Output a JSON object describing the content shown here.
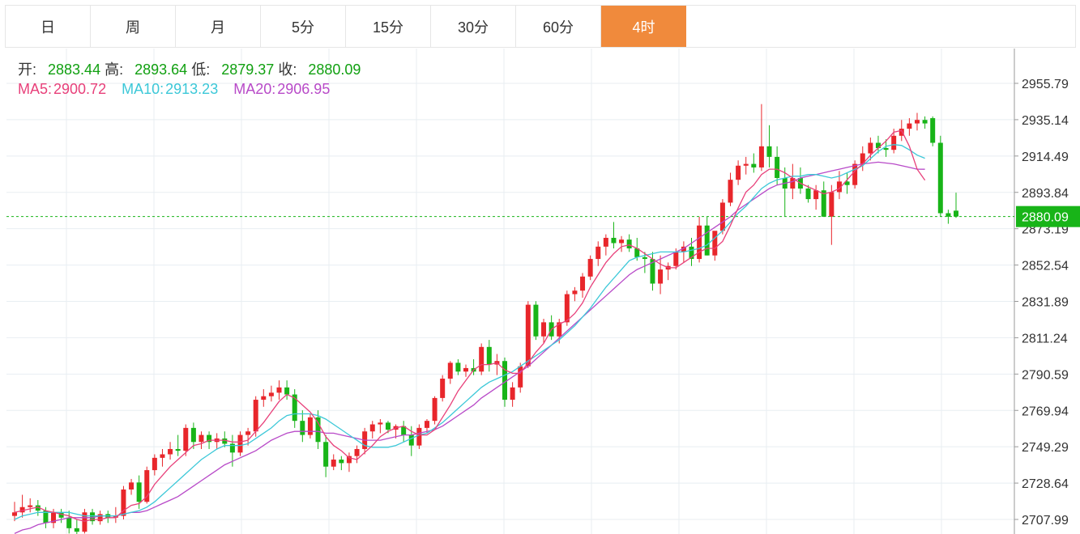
{
  "tabs": [
    "日",
    "周",
    "月",
    "5分",
    "15分",
    "30分",
    "60分",
    "4时"
  ],
  "active_tab_index": 7,
  "ohlc_info": {
    "open_label": "开:",
    "open_value": "2883.44",
    "high_label": "高:",
    "high_value": "2893.64",
    "low_label": "低:",
    "low_value": "2879.37",
    "close_label": "收:",
    "close_value": "2880.09"
  },
  "ma_info": {
    "ma5_label": "MA5:",
    "ma5_value": "2900.72",
    "ma10_label": "MA10:",
    "ma10_value": "2913.23",
    "ma20_label": "MA20:",
    "ma20_value": "2906.95"
  },
  "colors": {
    "up": "#e8262b",
    "down": "#18b418",
    "ma5": "#e8407a",
    "ma10": "#3cc8d8",
    "ma20": "#b84ac8",
    "accent": "#f08a3c"
  },
  "chart_data": {
    "type": "candlestick",
    "ylim": [
      2700.0,
      2970.0
    ],
    "y_ticks": [
      "2955.79",
      "2935.14",
      "2914.49",
      "2893.84",
      "2873.19",
      "2852.54",
      "2831.89",
      "2811.24",
      "2790.59",
      "2769.94",
      "2749.29",
      "2728.64",
      "2707.99"
    ],
    "last_price_label": "2880.09",
    "grid": true,
    "candles": [
      [
        2710,
        2718,
        2707,
        2712
      ],
      [
        2712,
        2722,
        2709,
        2715
      ],
      [
        2715,
        2720,
        2712,
        2716
      ],
      [
        2716,
        2719,
        2710,
        2713
      ],
      [
        2713,
        2715,
        2703,
        2706
      ],
      [
        2706,
        2714,
        2703,
        2712
      ],
      [
        2712,
        2714,
        2706,
        2709
      ],
      [
        2709,
        2713,
        2700,
        2703
      ],
      [
        2703,
        2708,
        2698,
        2701
      ],
      [
        2701,
        2714,
        2700,
        2712
      ],
      [
        2712,
        2714,
        2705,
        2707
      ],
      [
        2707,
        2713,
        2705,
        2711
      ],
      [
        2711,
        2713,
        2706,
        2709
      ],
      [
        2709,
        2715,
        2706,
        2710
      ],
      [
        2710,
        2727,
        2708,
        2725
      ],
      [
        2725,
        2731,
        2722,
        2729
      ],
      [
        2729,
        2733,
        2714,
        2718
      ],
      [
        2718,
        2738,
        2717,
        2736
      ],
      [
        2736,
        2745,
        2733,
        2743
      ],
      [
        2743,
        2748,
        2738,
        2745
      ],
      [
        2745,
        2752,
        2742,
        2748
      ],
      [
        2748,
        2756,
        2744,
        2747
      ],
      [
        2747,
        2762,
        2744,
        2760
      ],
      [
        2760,
        2763,
        2748,
        2752
      ],
      [
        2752,
        2758,
        2748,
        2756
      ],
      [
        2756,
        2758,
        2748,
        2752
      ],
      [
        2752,
        2757,
        2748,
        2754
      ],
      [
        2754,
        2758,
        2749,
        2751
      ],
      [
        2751,
        2756,
        2738,
        2746
      ],
      [
        2746,
        2758,
        2744,
        2756
      ],
      [
        2756,
        2760,
        2750,
        2758
      ],
      [
        2758,
        2778,
        2755,
        2776
      ],
      [
        2776,
        2782,
        2772,
        2778
      ],
      [
        2778,
        2784,
        2775,
        2780
      ],
      [
        2780,
        2787,
        2776,
        2783
      ],
      [
        2783,
        2787,
        2776,
        2779
      ],
      [
        2779,
        2782,
        2760,
        2764
      ],
      [
        2764,
        2770,
        2752,
        2756
      ],
      [
        2756,
        2768,
        2754,
        2766
      ],
      [
        2766,
        2770,
        2748,
        2752
      ],
      [
        2752,
        2756,
        2732,
        2738
      ],
      [
        2738,
        2745,
        2736,
        2742
      ],
      [
        2742,
        2744,
        2736,
        2740
      ],
      [
        2740,
        2746,
        2735,
        2744
      ],
      [
        2744,
        2750,
        2740,
        2748
      ],
      [
        2748,
        2760,
        2745,
        2758
      ],
      [
        2758,
        2764,
        2754,
        2762
      ],
      [
        2762,
        2765,
        2757,
        2763
      ],
      [
        2763,
        2764,
        2757,
        2759
      ],
      [
        2759,
        2762,
        2754,
        2761
      ],
      [
        2761,
        2764,
        2752,
        2756
      ],
      [
        2756,
        2761,
        2744,
        2750
      ],
      [
        2750,
        2762,
        2748,
        2760
      ],
      [
        2760,
        2765,
        2757,
        2764
      ],
      [
        2764,
        2778,
        2762,
        2777
      ],
      [
        2777,
        2790,
        2775,
        2788
      ],
      [
        2788,
        2798,
        2785,
        2797
      ],
      [
        2797,
        2799,
        2790,
        2792
      ],
      [
        2792,
        2796,
        2789,
        2794
      ],
      [
        2794,
        2799,
        2790,
        2792
      ],
      [
        2792,
        2808,
        2790,
        2806
      ],
      [
        2806,
        2810,
        2792,
        2796
      ],
      [
        2796,
        2802,
        2790,
        2798
      ],
      [
        2798,
        2800,
        2772,
        2776
      ],
      [
        2776,
        2786,
        2772,
        2783
      ],
      [
        2783,
        2797,
        2780,
        2795
      ],
      [
        2795,
        2832,
        2794,
        2830
      ],
      [
        2830,
        2832,
        2810,
        2812
      ],
      [
        2812,
        2822,
        2808,
        2820
      ],
      [
        2820,
        2824,
        2810,
        2812
      ],
      [
        2812,
        2822,
        2808,
        2820
      ],
      [
        2820,
        2838,
        2818,
        2836
      ],
      [
        2836,
        2840,
        2832,
        2838
      ],
      [
        2838,
        2848,
        2834,
        2846
      ],
      [
        2846,
        2858,
        2844,
        2856
      ],
      [
        2856,
        2866,
        2852,
        2863
      ],
      [
        2863,
        2870,
        2858,
        2868
      ],
      [
        2868,
        2877,
        2862,
        2865
      ],
      [
        2865,
        2869,
        2860,
        2867
      ],
      [
        2867,
        2870,
        2860,
        2862
      ],
      [
        2862,
        2868,
        2855,
        2857
      ],
      [
        2857,
        2860,
        2848,
        2856
      ],
      [
        2856,
        2860,
        2838,
        2842
      ],
      [
        2842,
        2858,
        2836,
        2850
      ],
      [
        2850,
        2854,
        2844,
        2852
      ],
      [
        2852,
        2862,
        2850,
        2860
      ],
      [
        2860,
        2866,
        2854,
        2863
      ],
      [
        2863,
        2868,
        2852,
        2856
      ],
      [
        2856,
        2880,
        2854,
        2875
      ],
      [
        2875,
        2880,
        2858,
        2858
      ],
      [
        2858,
        2870,
        2855,
        2872
      ],
      [
        2872,
        2890,
        2870,
        2888
      ],
      [
        2888,
        2905,
        2886,
        2901
      ],
      [
        2901,
        2912,
        2898,
        2909
      ],
      [
        2909,
        2914,
        2904,
        2910
      ],
      [
        2910,
        2916,
        2905,
        2908
      ],
      [
        2908,
        2944,
        2906,
        2920
      ],
      [
        2920,
        2932,
        2908,
        2914
      ],
      [
        2914,
        2920,
        2898,
        2902
      ],
      [
        2902,
        2908,
        2880,
        2896
      ],
      [
        2896,
        2910,
        2890,
        2902
      ],
      [
        2902,
        2908,
        2893,
        2896
      ],
      [
        2896,
        2898,
        2888,
        2890
      ],
      [
        2890,
        2898,
        2884,
        2895
      ],
      [
        2895,
        2900,
        2880,
        2880
      ],
      [
        2880,
        2898,
        2864,
        2894
      ],
      [
        2894,
        2906,
        2890,
        2900
      ],
      [
        2900,
        2905,
        2893,
        2898
      ],
      [
        2898,
        2912,
        2896,
        2910
      ],
      [
        2910,
        2920,
        2906,
        2916
      ],
      [
        2916,
        2925,
        2912,
        2922
      ],
      [
        2922,
        2926,
        2916,
        2919
      ],
      [
        2919,
        2924,
        2914,
        2918
      ],
      [
        2918,
        2930,
        2916,
        2926
      ],
      [
        2926,
        2935,
        2923,
        2930
      ],
      [
        2930,
        2936,
        2926,
        2933
      ],
      [
        2933,
        2939,
        2929,
        2935
      ],
      [
        2935,
        2937,
        2930,
        2933
      ],
      [
        2936,
        2937,
        2920,
        2922
      ],
      [
        2922,
        2926,
        2880,
        2882
      ],
      [
        2882,
        2884,
        2876,
        2880
      ],
      [
        2883.44,
        2893.64,
        2879.37,
        2880.09
      ]
    ],
    "ma5": [
      2712,
      2713,
      2714,
      2715,
      2713,
      2712,
      2711,
      2710,
      2708,
      2707,
      2708,
      2708,
      2709,
      2709,
      2713,
      2716,
      2717,
      2721,
      2728,
      2733,
      2738,
      2742,
      2746,
      2750,
      2751,
      2753,
      2753,
      2753,
      2752,
      2752,
      2753,
      2758,
      2763,
      2769,
      2775,
      2779,
      2777,
      2773,
      2769,
      2763,
      2755,
      2750,
      2747,
      2743,
      2742,
      2746,
      2750,
      2755,
      2758,
      2760,
      2761,
      2758,
      2756,
      2756,
      2759,
      2766,
      2773,
      2781,
      2787,
      2793,
      2796,
      2796,
      2797,
      2793,
      2791,
      2791,
      2797,
      2803,
      2808,
      2816,
      2819,
      2821,
      2825,
      2831,
      2840,
      2847,
      2854,
      2859,
      2863,
      2864,
      2862,
      2859,
      2856,
      2853,
      2851,
      2851,
      2854,
      2857,
      2860,
      2862,
      2862,
      2866,
      2875,
      2885,
      2894,
      2898,
      2904,
      2907,
      2907,
      2905,
      2902,
      2899,
      2897,
      2895,
      2893,
      2894,
      2896,
      2901,
      2906,
      2910,
      2915,
      2919,
      2923,
      2928,
      2929,
      2920,
      2907,
      2900.72
    ],
    "ma10": [
      2708,
      2710,
      2711,
      2712,
      2712,
      2712,
      2712,
      2712,
      2711,
      2710,
      2710,
      2710,
      2710,
      2710,
      2711,
      2712,
      2713,
      2715,
      2718,
      2722,
      2726,
      2730,
      2734,
      2738,
      2742,
      2745,
      2748,
      2750,
      2750,
      2750,
      2751,
      2754,
      2757,
      2760,
      2764,
      2767,
      2768,
      2768,
      2768,
      2767,
      2765,
      2762,
      2759,
      2756,
      2753,
      2750,
      2749,
      2749,
      2749,
      2750,
      2752,
      2754,
      2756,
      2757,
      2760,
      2763,
      2767,
      2771,
      2775,
      2779,
      2783,
      2786,
      2788,
      2790,
      2792,
      2795,
      2798,
      2801,
      2804,
      2807,
      2810,
      2814,
      2818,
      2823,
      2828,
      2834,
      2840,
      2845,
      2850,
      2855,
      2857,
      2858,
      2859,
      2860,
      2860,
      2860,
      2860,
      2861,
      2862,
      2864,
      2868,
      2872,
      2877,
      2882,
      2886,
      2891,
      2896,
      2899,
      2901,
      2902,
      2903,
      2903,
      2904,
      2904,
      2903,
      2902,
      2903,
      2905,
      2907,
      2909,
      2913,
      2917,
      2920,
      2921,
      2920.5,
      2918,
      2915,
      2913.23
    ],
    "ma20": [
      2700,
      2702,
      2703,
      2705,
      2706,
      2707,
      2708,
      2709,
      2709,
      2709,
      2709,
      2710,
      2710,
      2710,
      2711,
      2712,
      2712,
      2713,
      2715,
      2717,
      2719,
      2721,
      2724,
      2727,
      2730,
      2733,
      2736,
      2739,
      2741,
      2743,
      2745,
      2747,
      2750,
      2753,
      2755,
      2757,
      2758,
      2758,
      2758,
      2758,
      2757,
      2757,
      2756,
      2755,
      2754,
      2753,
      2753,
      2753,
      2754,
      2755,
      2756,
      2756,
      2757,
      2758,
      2759,
      2761,
      2764,
      2767,
      2770,
      2773,
      2777,
      2780,
      2783,
      2786,
      2789,
      2792,
      2795,
      2799,
      2803,
      2807,
      2811,
      2815,
      2819,
      2823,
      2827,
      2831,
      2835,
      2839,
      2843,
      2847,
      2850,
      2852,
      2854,
      2856,
      2858,
      2860,
      2862,
      2865,
      2868,
      2871,
      2874,
      2877,
      2880,
      2884,
      2887,
      2890,
      2893,
      2896,
      2898,
      2899,
      2900,
      2902,
      2903,
      2904,
      2905,
      2906,
      2907,
      2908,
      2909,
      2910,
      2910.5,
      2911,
      2910.5,
      2910,
      2909,
      2908,
      2907,
      2906.95
    ]
  }
}
